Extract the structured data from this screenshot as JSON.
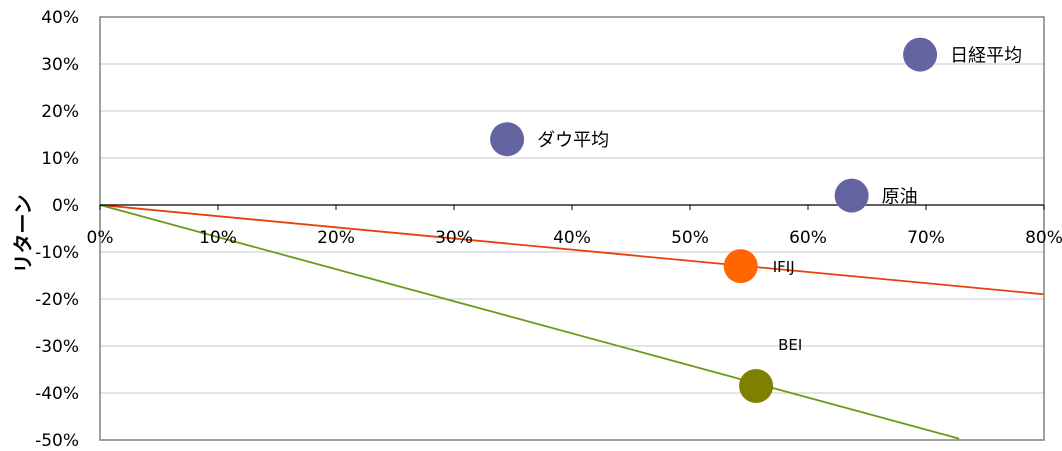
{
  "chart_data": {
    "type": "scatter",
    "title": "",
    "xlabel": "",
    "ylabel": "リターン",
    "xlim": [
      0,
      0.8
    ],
    "ylim": [
      -0.5,
      0.4
    ],
    "x_ticks": [
      "0%",
      "10%",
      "20%",
      "30%",
      "40%",
      "50%",
      "60%",
      "70%",
      "80%"
    ],
    "y_ticks": [
      "40%",
      "30%",
      "20%",
      "10%",
      "0%",
      "-10%",
      "-20%",
      "-30%",
      "-40%",
      "-50%"
    ],
    "grid": "horizontal",
    "points": [
      {
        "label": "日経平均",
        "x": 0.695,
        "y": 0.32,
        "color": "#6464A0"
      },
      {
        "label": "ダウ平均",
        "x": 0.345,
        "y": 0.14,
        "color": "#6464A0"
      },
      {
        "label": "原油",
        "x": 0.637,
        "y": 0.02,
        "color": "#6464A0"
      },
      {
        "label": "IFIJ",
        "x": 0.543,
        "y": -0.13,
        "color": "#FF6600"
      },
      {
        "label": "BEI",
        "x": 0.556,
        "y": -0.385,
        "color": "#808000"
      }
    ],
    "lines": [
      {
        "from": [
          0,
          0
        ],
        "to": [
          0.8,
          -0.19
        ],
        "color": "#E8400C"
      },
      {
        "from": [
          0,
          0
        ],
        "to": [
          0.728,
          -0.497
        ],
        "color": "#6B9A1A"
      }
    ]
  }
}
